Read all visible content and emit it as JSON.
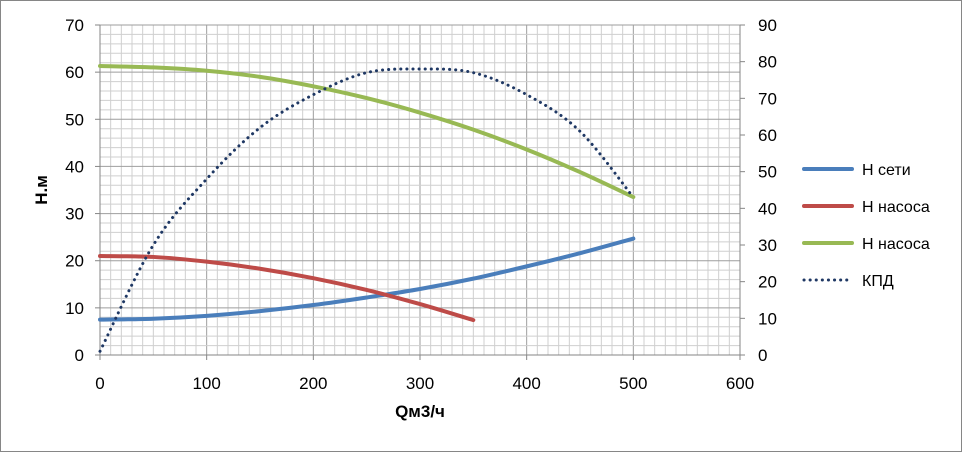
{
  "chart_data": {
    "type": "line",
    "title": "",
    "xlabel": "Qм3/ч",
    "ylabel": "Н.м",
    "y2label": "",
    "xlim": [
      0,
      600
    ],
    "ylim": [
      0,
      70
    ],
    "y2lim": [
      0,
      90
    ],
    "grid": true,
    "legend_position": "right",
    "x_ticks": [
      "0",
      "100",
      "200",
      "300",
      "400",
      "500",
      "600"
    ],
    "y_ticks": [
      "0",
      "10",
      "20",
      "30",
      "40",
      "50",
      "60",
      "70"
    ],
    "y2_ticks": [
      "0",
      "10",
      "20",
      "30",
      "40",
      "50",
      "60",
      "70",
      "80",
      "90"
    ],
    "series": [
      {
        "name": "Н сети",
        "axis": "left",
        "style": "solid",
        "color": "#4a7ebb",
        "x": [
          0,
          50,
          100,
          150,
          200,
          250,
          300,
          350,
          400,
          450,
          500
        ],
        "y": [
          7.5,
          7.7,
          8.3,
          9.3,
          10.6,
          12.2,
          14.0,
          16.2,
          18.8,
          21.6,
          24.7
        ]
      },
      {
        "name": "Н насоса",
        "axis": "left",
        "style": "solid",
        "color": "#be4b48",
        "x": [
          0,
          50,
          100,
          150,
          200,
          250,
          300,
          350
        ],
        "y": [
          21.0,
          20.8,
          19.8,
          18.3,
          16.3,
          13.8,
          10.8,
          7.4
        ]
      },
      {
        "name": "Н насоса",
        "axis": "left",
        "style": "solid",
        "color": "#98b954",
        "x": [
          0,
          50,
          100,
          150,
          200,
          250,
          300,
          350,
          400,
          450,
          500
        ],
        "y": [
          61.3,
          61.0,
          60.3,
          59.0,
          57.0,
          54.5,
          51.4,
          47.8,
          43.6,
          38.8,
          33.5
        ]
      },
      {
        "name": "КПД",
        "axis": "right",
        "style": "dotted",
        "color": "#1f3864",
        "x": [
          0,
          50,
          100,
          150,
          200,
          250,
          300,
          350,
          400,
          450,
          500
        ],
        "y": [
          1,
          30,
          48,
          62,
          71,
          77,
          78,
          77,
          71,
          61,
          43
        ]
      }
    ]
  }
}
